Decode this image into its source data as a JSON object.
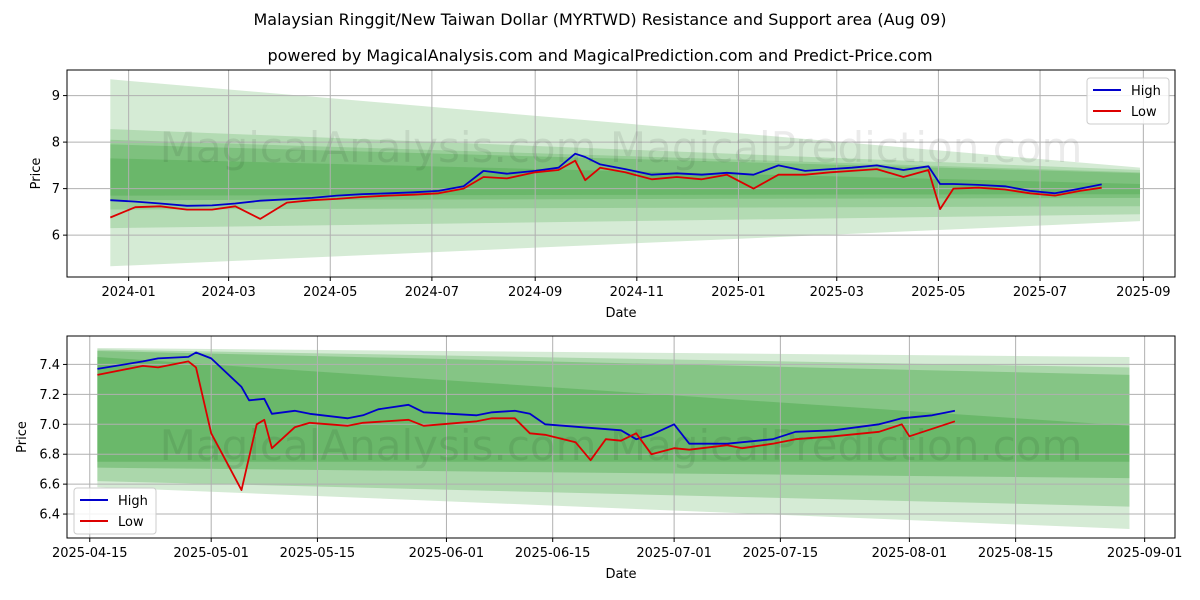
{
  "title": "Malaysian Ringgit/New Taiwan Dollar (MYRTWD) Resistance and Support area (Aug 09)",
  "subtitle": "powered by MagicalAnalysis.com and MagicalPrediction.com and Predict-Price.com",
  "watermark": "MagicalAnalysis.com    MagicalPrediction.com",
  "colors": {
    "high": "#0000cc",
    "low": "#dd0000",
    "band": "#2e9a2e",
    "grid": "#b0b0b0"
  },
  "chart_data": [
    {
      "type": "line",
      "xlabel": "Date",
      "ylabel": "Price",
      "ylim": [
        5.1,
        9.55
      ],
      "xlim": [
        "2023-11-25",
        "2025-09-20"
      ],
      "yticks": [
        "6",
        "7",
        "8",
        "9"
      ],
      "xticks": [
        "2024-01",
        "2024-03",
        "2024-05",
        "2024-07",
        "2024-09",
        "2024-11",
        "2025-01",
        "2025-03",
        "2025-05",
        "2025-07",
        "2025-09"
      ],
      "grid": true,
      "legend": "top-right",
      "bands": [
        {
          "x": [
            "2023-12-21",
            "2025-08-30"
          ],
          "upper": [
            9.35,
            7.45
          ],
          "lower": [
            5.33,
            6.3
          ],
          "opacity": 0.2
        },
        {
          "x": [
            "2023-12-21",
            "2025-08-30"
          ],
          "upper": [
            8.28,
            7.4
          ],
          "lower": [
            6.15,
            6.45
          ],
          "opacity": 0.2
        },
        {
          "x": [
            "2023-12-21",
            "2025-08-30"
          ],
          "upper": [
            8.05,
            7.35
          ],
          "lower": [
            6.55,
            6.62
          ],
          "opacity": 0.2
        },
        {
          "x": [
            "2023-12-21",
            "2025-08-30"
          ],
          "upper": [
            7.95,
            7.33
          ],
          "lower": [
            6.75,
            6.8
          ],
          "opacity": 0.25
        },
        {
          "x": [
            "2023-12-21",
            "2025-08-30"
          ],
          "upper": [
            7.65,
            7.1
          ],
          "lower": [
            6.85,
            6.88
          ],
          "opacity": 0.25
        }
      ],
      "series": [
        {
          "name": "High",
          "x": [
            "2023-12-21",
            "2024-01-05",
            "2024-01-20",
            "2024-02-05",
            "2024-02-20",
            "2024-03-05",
            "2024-03-20",
            "2024-04-05",
            "2024-04-20",
            "2024-05-05",
            "2024-05-20",
            "2024-06-05",
            "2024-06-20",
            "2024-07-05",
            "2024-07-20",
            "2024-08-01",
            "2024-08-15",
            "2024-09-01",
            "2024-09-15",
            "2024-09-25",
            "2024-10-01",
            "2024-10-10",
            "2024-10-25",
            "2024-11-10",
            "2024-11-25",
            "2024-12-10",
            "2024-12-25",
            "2025-01-10",
            "2025-01-25",
            "2025-02-10",
            "2025-02-25",
            "2025-03-10",
            "2025-03-25",
            "2025-04-10",
            "2025-04-25",
            "2025-05-02",
            "2025-05-10",
            "2025-05-25",
            "2025-06-10",
            "2025-06-25",
            "2025-07-10",
            "2025-07-25",
            "2025-08-07"
          ],
          "values": [
            6.75,
            6.72,
            6.68,
            6.63,
            6.64,
            6.68,
            6.74,
            6.77,
            6.8,
            6.85,
            6.88,
            6.9,
            6.92,
            6.95,
            7.05,
            7.38,
            7.32,
            7.38,
            7.45,
            7.75,
            7.68,
            7.52,
            7.42,
            7.3,
            7.33,
            7.3,
            7.34,
            7.3,
            7.5,
            7.38,
            7.42,
            7.45,
            7.5,
            7.4,
            7.48,
            7.1,
            7.1,
            7.08,
            7.05,
            6.95,
            6.9,
            7.0,
            7.09
          ]
        },
        {
          "name": "Low",
          "x": [
            "2023-12-21",
            "2024-01-05",
            "2024-01-20",
            "2024-02-05",
            "2024-02-20",
            "2024-03-05",
            "2024-03-20",
            "2024-04-05",
            "2024-04-20",
            "2024-05-05",
            "2024-05-20",
            "2024-06-05",
            "2024-06-20",
            "2024-07-05",
            "2024-07-20",
            "2024-08-01",
            "2024-08-15",
            "2024-09-01",
            "2024-09-15",
            "2024-09-25",
            "2024-10-01",
            "2024-10-10",
            "2024-10-25",
            "2024-11-10",
            "2024-11-25",
            "2024-12-10",
            "2024-12-25",
            "2025-01-10",
            "2025-01-25",
            "2025-02-10",
            "2025-02-25",
            "2025-03-10",
            "2025-03-25",
            "2025-04-10",
            "2025-04-25",
            "2025-05-02",
            "2025-05-10",
            "2025-05-25",
            "2025-06-10",
            "2025-06-25",
            "2025-07-10",
            "2025-07-25",
            "2025-08-07"
          ],
          "values": [
            6.38,
            6.6,
            6.62,
            6.55,
            6.55,
            6.62,
            6.35,
            6.7,
            6.75,
            6.78,
            6.82,
            6.85,
            6.87,
            6.9,
            7.0,
            7.25,
            7.22,
            7.35,
            7.4,
            7.6,
            7.18,
            7.45,
            7.35,
            7.2,
            7.25,
            7.2,
            7.3,
            7.0,
            7.3,
            7.3,
            7.35,
            7.38,
            7.42,
            7.25,
            7.4,
            6.56,
            7.0,
            7.02,
            6.98,
            6.9,
            6.85,
            6.95,
            7.02
          ]
        }
      ]
    },
    {
      "type": "line",
      "xlabel": "Date",
      "ylabel": "Price",
      "ylim": [
        6.24,
        7.59
      ],
      "xlim": [
        "2025-04-12",
        "2025-09-05"
      ],
      "yticks": [
        "6.4",
        "6.6",
        "6.8",
        "7.0",
        "7.2",
        "7.4"
      ],
      "xticks": [
        "2025-04-15",
        "2025-05-01",
        "2025-05-15",
        "2025-06-01",
        "2025-06-15",
        "2025-07-01",
        "2025-07-15",
        "2025-08-01",
        "2025-08-15",
        "2025-09-01"
      ],
      "grid": true,
      "legend": "bottom-left",
      "bands": [
        {
          "x": [
            "2025-04-16",
            "2025-08-30"
          ],
          "upper": [
            7.51,
            7.45
          ],
          "lower": [
            6.58,
            6.3
          ],
          "opacity": 0.2
        },
        {
          "x": [
            "2025-04-16",
            "2025-08-30"
          ],
          "upper": [
            7.5,
            7.38
          ],
          "lower": [
            6.62,
            6.45
          ],
          "opacity": 0.25
        },
        {
          "x": [
            "2025-04-16",
            "2025-08-30"
          ],
          "upper": [
            7.49,
            7.33
          ],
          "lower": [
            6.71,
            6.64
          ],
          "opacity": 0.3
        },
        {
          "x": [
            "2025-04-16",
            "2025-08-30"
          ],
          "upper": [
            7.45,
            6.99
          ],
          "lower": [
            6.75,
            6.75
          ],
          "opacity": 0.3
        }
      ],
      "series": [
        {
          "name": "High",
          "x": [
            "2025-04-16",
            "2025-04-22",
            "2025-04-24",
            "2025-04-28",
            "2025-04-29",
            "2025-05-01",
            "2025-05-05",
            "2025-05-06",
            "2025-05-08",
            "2025-05-09",
            "2025-05-12",
            "2025-05-14",
            "2025-05-19",
            "2025-05-21",
            "2025-05-23",
            "2025-05-27",
            "2025-05-29",
            "2025-06-05",
            "2025-06-07",
            "2025-06-10",
            "2025-06-12",
            "2025-06-14",
            "2025-06-19",
            "2025-06-24",
            "2025-06-26",
            "2025-06-28",
            "2025-07-01",
            "2025-07-03",
            "2025-07-08",
            "2025-07-10",
            "2025-07-14",
            "2025-07-17",
            "2025-07-22",
            "2025-07-28",
            "2025-07-31",
            "2025-08-04",
            "2025-08-07"
          ],
          "values": [
            7.37,
            7.42,
            7.44,
            7.45,
            7.48,
            7.44,
            7.25,
            7.16,
            7.17,
            7.07,
            7.09,
            7.07,
            7.04,
            7.06,
            7.1,
            7.13,
            7.08,
            7.06,
            7.08,
            7.09,
            7.07,
            7.0,
            6.98,
            6.96,
            6.9,
            6.93,
            7.0,
            6.87,
            6.87,
            6.88,
            6.9,
            6.95,
            6.96,
            7.0,
            7.04,
            7.06,
            7.09
          ]
        },
        {
          "name": "Low",
          "x": [
            "2025-04-16",
            "2025-04-22",
            "2025-04-24",
            "2025-04-28",
            "2025-04-29",
            "2025-05-01",
            "2025-05-03",
            "2025-05-05",
            "2025-05-07",
            "2025-05-08",
            "2025-05-09",
            "2025-05-12",
            "2025-05-14",
            "2025-05-19",
            "2025-05-21",
            "2025-05-27",
            "2025-05-29",
            "2025-06-05",
            "2025-06-07",
            "2025-06-10",
            "2025-06-12",
            "2025-06-14",
            "2025-06-18",
            "2025-06-20",
            "2025-06-22",
            "2025-06-24",
            "2025-06-26",
            "2025-06-28",
            "2025-07-01",
            "2025-07-03",
            "2025-07-08",
            "2025-07-10",
            "2025-07-14",
            "2025-07-17",
            "2025-07-22",
            "2025-07-24",
            "2025-07-28",
            "2025-07-31",
            "2025-08-01",
            "2025-08-04",
            "2025-08-07"
          ],
          "values": [
            7.33,
            7.39,
            7.38,
            7.42,
            7.38,
            6.94,
            6.75,
            6.56,
            7.0,
            7.03,
            6.84,
            6.98,
            7.01,
            6.99,
            7.01,
            7.03,
            6.99,
            7.02,
            7.04,
            7.04,
            6.94,
            6.93,
            6.88,
            6.76,
            6.9,
            6.89,
            6.94,
            6.8,
            6.84,
            6.83,
            6.86,
            6.84,
            6.87,
            6.9,
            6.92,
            6.93,
            6.95,
            7.0,
            6.92,
            6.97,
            7.02
          ]
        }
      ]
    }
  ]
}
